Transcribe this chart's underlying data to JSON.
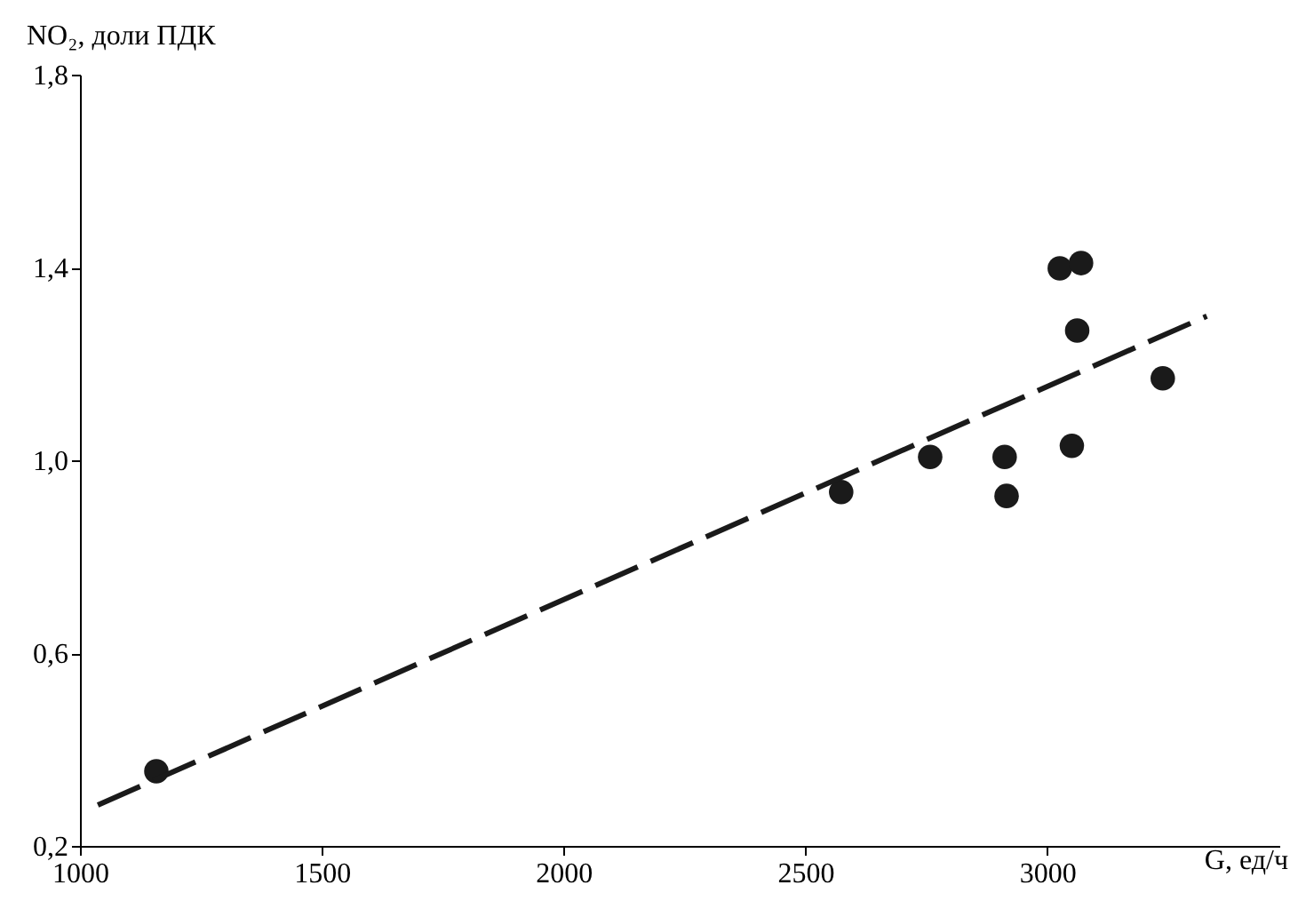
{
  "chart_data": {
    "type": "scatter",
    "xlabel": "G, ед/ч",
    "ylabel": "NO₂, доли ПДК",
    "xlim": [
      1000,
      3480
    ],
    "xticks": [
      1000,
      1500,
      2000,
      2500,
      3000
    ],
    "ylim": [
      0.2,
      1.8
    ],
    "yticks": [
      {
        "value": 0.2,
        "label": "0,2"
      },
      {
        "value": 0.6,
        "label": "0,6"
      },
      {
        "value": 1.0,
        "label": "1,0"
      },
      {
        "value": 1.4,
        "label": "1,4"
      },
      {
        "value": 1.8,
        "label": "1,8"
      }
    ],
    "grid": false,
    "marker": "circle",
    "series": [
      {
        "color": "#1a1a1a",
        "x": [
          1158,
          2574,
          2758,
          2912,
          2916,
          3026,
          3070,
          3062,
          3051,
          3239
        ],
        "values": [
          0.355,
          0.934,
          1.007,
          1.007,
          0.926,
          1.398,
          1.409,
          1.269,
          1.03,
          1.17
        ]
      },
      {
        "type": "line",
        "color": "#1a1a1a",
        "line_style": "dashed",
        "marker": "none",
        "x": [
          1037,
          3330
        ],
        "values": [
          0.285,
          1.299
        ]
      }
    ]
  }
}
